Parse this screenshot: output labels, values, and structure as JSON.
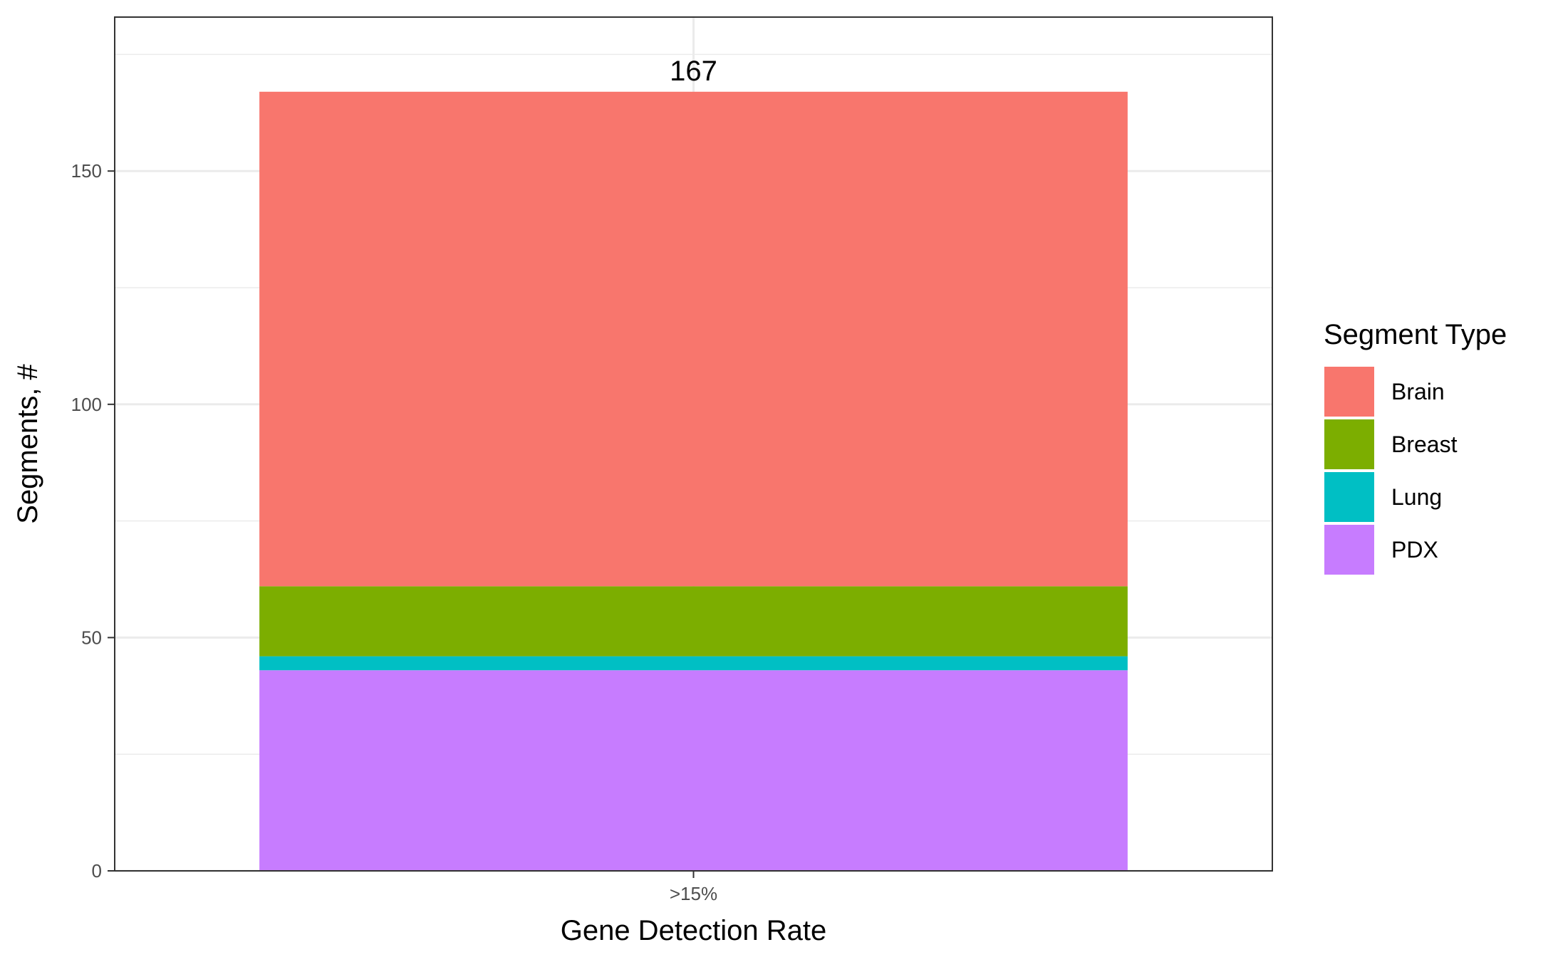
{
  "chart_data": {
    "type": "bar",
    "stacked": true,
    "categories": [
      ">15%"
    ],
    "series": [
      {
        "name": "PDX",
        "values": [
          43
        ],
        "color": "#C77CFF"
      },
      {
        "name": "Lung",
        "values": [
          3
        ],
        "color": "#00BFC4"
      },
      {
        "name": "Breast",
        "values": [
          15
        ],
        "color": "#7CAE00"
      },
      {
        "name": "Brain",
        "values": [
          106
        ],
        "color": "#F8766D"
      }
    ],
    "totals": [
      167
    ],
    "total_labels": [
      "167"
    ],
    "xlabel": "Gene Detection Rate",
    "ylabel": "Segments, #",
    "ylim": [
      0,
      183
    ],
    "yticks": [
      0,
      50,
      100,
      150
    ],
    "ytick_labels": [
      "0",
      "50",
      "100",
      "150"
    ],
    "grid": true,
    "legend": {
      "title": "Segment Type",
      "position": "right",
      "entries": [
        {
          "label": "Brain",
          "color": "#F8766D"
        },
        {
          "label": "Breast",
          "color": "#7CAE00"
        },
        {
          "label": "Lung",
          "color": "#00BFC4"
        },
        {
          "label": "PDX",
          "color": "#C77CFF"
        }
      ]
    }
  }
}
